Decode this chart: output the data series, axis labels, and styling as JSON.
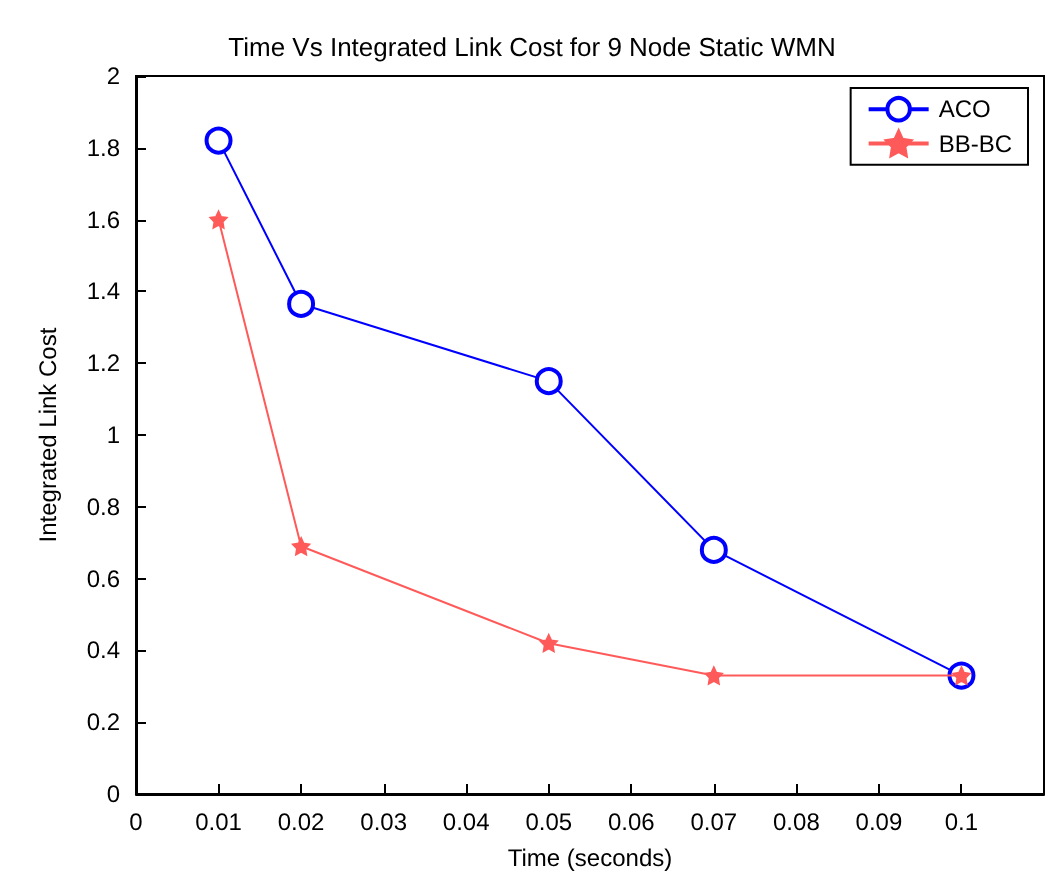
{
  "chart_data": {
    "type": "line",
    "title": "Time Vs Integrated Link Cost for 9 Node Static WMN",
    "xlabel": "Time (seconds)",
    "ylabel": "Integrated Link Cost",
    "x": [
      0.01,
      0.02,
      0.05,
      0.07,
      0.1
    ],
    "series": [
      {
        "name": "ACO",
        "color": "#0000ff",
        "marker": "circle",
        "values": [
          1.82,
          1.365,
          1.15,
          0.68,
          0.33
        ]
      },
      {
        "name": "BB-BC",
        "color": "#ff5a5a",
        "marker": "star",
        "values": [
          1.6,
          0.69,
          0.42,
          0.33,
          0.33
        ]
      }
    ],
    "xlim": [
      0,
      0.11
    ],
    "xticks": [
      0,
      0.01,
      0.02,
      0.03,
      0.04,
      0.05,
      0.06,
      0.07,
      0.08,
      0.09,
      0.1
    ],
    "ylim": [
      0,
      2
    ],
    "yticks": [
      0,
      0.2,
      0.4,
      0.6,
      0.8,
      1,
      1.2,
      1.4,
      1.6,
      1.8,
      2
    ],
    "grid": false,
    "legend": "top right",
    "line_style": "solid"
  }
}
